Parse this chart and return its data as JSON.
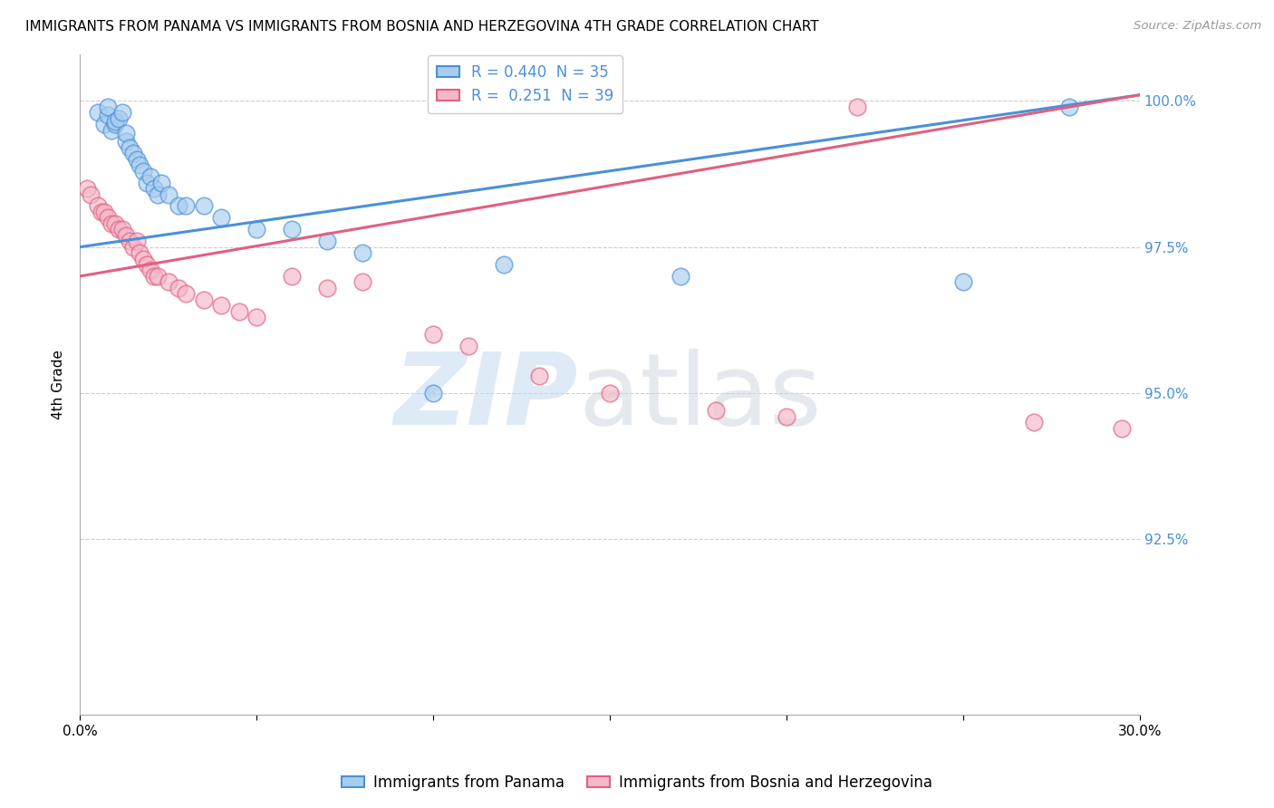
{
  "title": "IMMIGRANTS FROM PANAMA VS IMMIGRANTS FROM BOSNIA AND HERZEGOVINA 4TH GRADE CORRELATION CHART",
  "source": "Source: ZipAtlas.com",
  "ylabel": "4th Grade",
  "xlim": [
    0.0,
    0.3
  ],
  "ylim": [
    0.895,
    1.008
  ],
  "yticks": [
    0.925,
    0.95,
    0.975,
    1.0
  ],
  "yticklabels": [
    "92.5%",
    "95.0%",
    "97.5%",
    "100.0%"
  ],
  "R_blue": 0.44,
  "N_blue": 35,
  "R_pink": 0.251,
  "N_pink": 39,
  "blue_color": "#A8CDED",
  "pink_color": "#F5B8C8",
  "blue_line_color": "#4A90D9",
  "pink_line_color": "#E06080",
  "legend_label_blue": "Immigrants from Panama",
  "legend_label_pink": "Immigrants from Bosnia and Herzegovina",
  "blue_line_x0": 0.0,
  "blue_line_y0": 0.975,
  "blue_line_x1": 0.3,
  "blue_line_y1": 1.001,
  "pink_line_x0": 0.0,
  "pink_line_y0": 0.97,
  "pink_line_x1": 0.3,
  "pink_line_y1": 1.001,
  "blue_x": [
    0.005,
    0.007,
    0.008,
    0.008,
    0.009,
    0.01,
    0.01,
    0.011,
    0.012,
    0.013,
    0.013,
    0.014,
    0.015,
    0.016,
    0.017,
    0.018,
    0.019,
    0.02,
    0.021,
    0.022,
    0.023,
    0.025,
    0.028,
    0.03,
    0.035,
    0.04,
    0.05,
    0.06,
    0.07,
    0.08,
    0.1,
    0.12,
    0.17,
    0.25,
    0.28
  ],
  "blue_y": [
    0.998,
    0.996,
    0.9975,
    0.999,
    0.995,
    0.996,
    0.9965,
    0.997,
    0.998,
    0.993,
    0.9945,
    0.992,
    0.991,
    0.99,
    0.989,
    0.988,
    0.986,
    0.987,
    0.985,
    0.984,
    0.986,
    0.984,
    0.982,
    0.982,
    0.982,
    0.98,
    0.978,
    0.978,
    0.976,
    0.974,
    0.95,
    0.972,
    0.97,
    0.969,
    0.999
  ],
  "pink_x": [
    0.002,
    0.003,
    0.005,
    0.006,
    0.007,
    0.008,
    0.009,
    0.01,
    0.011,
    0.012,
    0.013,
    0.014,
    0.015,
    0.016,
    0.017,
    0.018,
    0.019,
    0.02,
    0.021,
    0.022,
    0.025,
    0.028,
    0.03,
    0.035,
    0.04,
    0.045,
    0.05,
    0.06,
    0.07,
    0.08,
    0.1,
    0.11,
    0.13,
    0.15,
    0.18,
    0.2,
    0.22,
    0.27,
    0.295
  ],
  "pink_y": [
    0.985,
    0.984,
    0.982,
    0.981,
    0.981,
    0.98,
    0.979,
    0.979,
    0.978,
    0.978,
    0.977,
    0.976,
    0.975,
    0.976,
    0.974,
    0.973,
    0.972,
    0.971,
    0.97,
    0.97,
    0.969,
    0.968,
    0.967,
    0.966,
    0.965,
    0.964,
    0.963,
    0.97,
    0.968,
    0.969,
    0.96,
    0.958,
    0.953,
    0.95,
    0.947,
    0.946,
    0.999,
    0.945,
    0.944
  ]
}
